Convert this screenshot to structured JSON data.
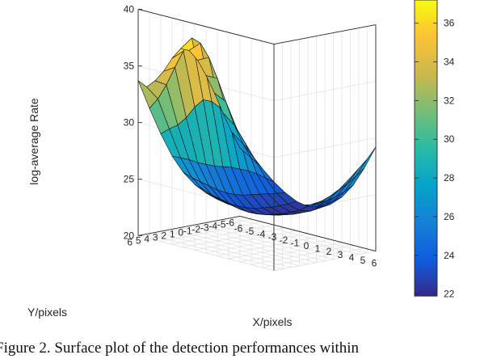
{
  "chart_data": {
    "type": "surface",
    "title": "",
    "xlabel": "X/pixels",
    "ylabel": "Y/pixels",
    "zlabel": "log-average Rate",
    "x": [
      -6,
      -5,
      -4,
      -3,
      -2,
      -1,
      0,
      1,
      2,
      3,
      4,
      5,
      6
    ],
    "y": [
      6,
      5,
      4,
      3,
      2,
      1,
      0,
      -1,
      -2,
      -3,
      -4,
      -5,
      -6
    ],
    "x_tick_labels": [
      "-6",
      "-5",
      "-4",
      "-3",
      "-2",
      "-1",
      "0",
      "1",
      "2",
      "3",
      "4",
      "5",
      "6"
    ],
    "y_tick_labels": [
      "6",
      "5",
      "4",
      "3",
      "2",
      "1",
      "0",
      "-1",
      "-2",
      "-3",
      "-4",
      "-5",
      "-6"
    ],
    "z_ticks": [
      20,
      25,
      30,
      35,
      40
    ],
    "zlim": [
      20,
      40
    ],
    "colorbar": {
      "ticks": [
        22,
        24,
        26,
        28,
        30,
        32,
        34,
        36
      ],
      "range": [
        21.9,
        37.2
      ],
      "colormap": "parula"
    },
    "grid": true,
    "z_approx": [
      [
        33.7,
        31.5,
        29.5,
        27.8,
        26.6,
        25.8,
        25.3,
        25.0,
        24.8,
        25.3,
        25.9,
        26.0,
        25.8
      ],
      [
        33.0,
        32.2,
        29.8,
        27.5,
        26.0,
        25.2,
        24.8,
        24.6,
        24.7,
        25.6,
        26.3,
        26.1,
        25.6
      ],
      [
        33.4,
        33.3,
        30.0,
        27.2,
        25.5,
        24.6,
        24.3,
        24.2,
        24.6,
        25.7,
        26.6,
        26.0,
        25.3
      ],
      [
        34.1,
        34.7,
        30.5,
        26.8,
        25.0,
        24.1,
        23.8,
        23.9,
        24.4,
        25.3,
        26.0,
        25.5,
        25.0
      ],
      [
        35.1,
        36.0,
        31.3,
        26.5,
        24.5,
        23.6,
        23.3,
        23.5,
        24.0,
        24.7,
        25.1,
        24.9,
        24.8
      ],
      [
        35.8,
        37.0,
        31.8,
        26.2,
        24.1,
        23.2,
        22.9,
        23.1,
        23.6,
        24.2,
        24.6,
        24.7,
        24.9
      ],
      [
        35.5,
        36.4,
        31.5,
        26.0,
        23.8,
        22.9,
        22.6,
        22.8,
        23.3,
        23.9,
        24.4,
        24.7,
        25.2
      ],
      [
        34.5,
        35.0,
        30.8,
        25.8,
        23.6,
        22.7,
        22.4,
        22.6,
        23.1,
        23.7,
        24.3,
        24.9,
        25.6
      ],
      [
        33.0,
        33.0,
        29.8,
        25.5,
        23.5,
        22.6,
        22.3,
        22.5,
        23.0,
        23.6,
        24.3,
        25.2,
        26.2
      ],
      [
        31.3,
        30.8,
        28.6,
        25.2,
        23.4,
        22.5,
        22.2,
        22.4,
        22.9,
        23.6,
        24.4,
        25.6,
        26.9
      ],
      [
        29.4,
        28.6,
        27.2,
        24.8,
        23.3,
        22.5,
        22.2,
        22.4,
        22.9,
        23.7,
        24.6,
        26.0,
        27.6
      ],
      [
        27.6,
        26.8,
        25.8,
        24.3,
        23.2,
        22.5,
        22.2,
        22.4,
        23.0,
        23.8,
        24.9,
        26.5,
        28.3
      ],
      [
        26.0,
        25.4,
        24.7,
        23.8,
        23.1,
        22.6,
        22.4,
        22.6,
        23.1,
        24.0,
        25.3,
        27.1,
        29.2
      ]
    ]
  },
  "caption": "Figure 2. Surface plot of the detection performances within"
}
